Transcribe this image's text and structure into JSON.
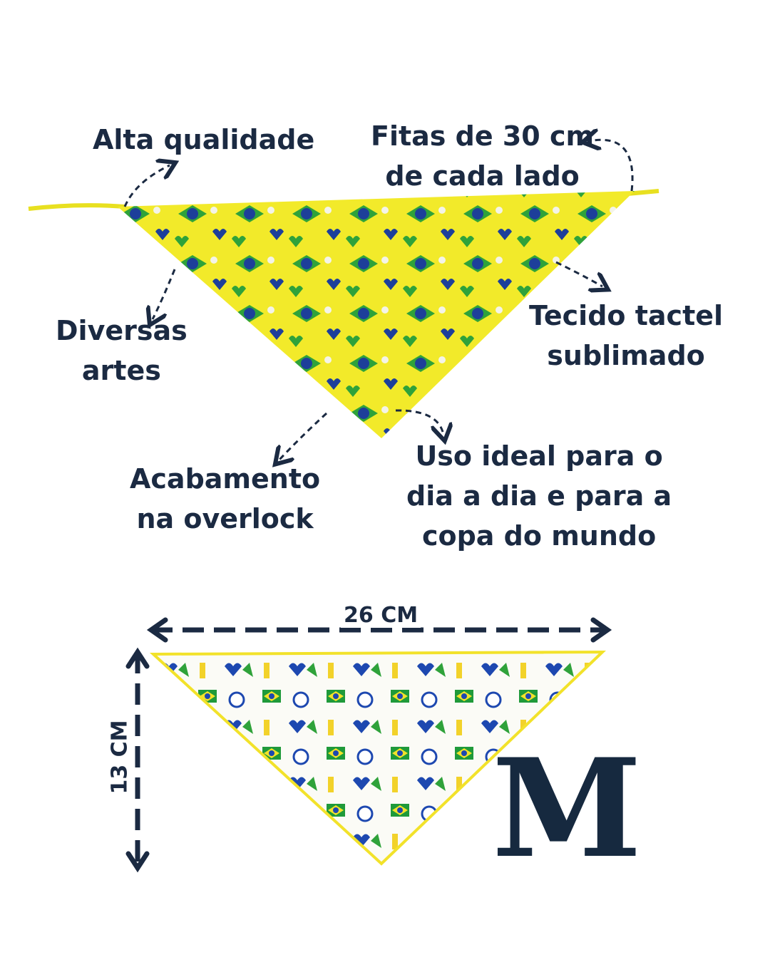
{
  "features": {
    "quality": [
      "Alta qualidade"
    ],
    "straps": [
      "Fitas de 30 cm",
      "de cada lado"
    ],
    "arts": [
      "Diversas",
      "artes"
    ],
    "fabric": [
      "Tecido tactel",
      "sublimado"
    ],
    "finish": [
      "Acabamento",
      "na overlock"
    ],
    "usage": [
      "Uso ideal para o",
      "dia a dia e para a",
      "copa do mundo"
    ]
  },
  "dimensions": {
    "width": "26 CM",
    "height": "13 CM",
    "size": "M"
  },
  "colors": {
    "text": "#1b2a42",
    "bandana_yellow": "#f2ea2a",
    "green": "#2fa23a",
    "blue": "#1d3f9a"
  }
}
